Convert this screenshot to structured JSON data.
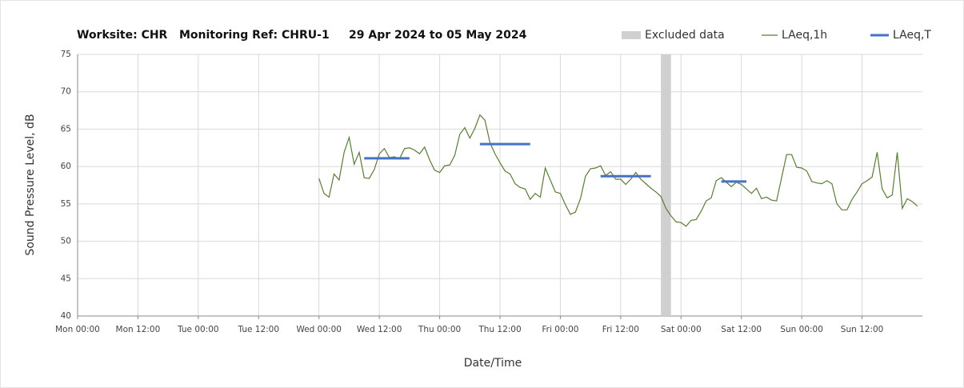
{
  "chart_data": {
    "type": "line",
    "title": "Worksite: CHR   Monitoring Ref: CHRU-1     29 Apr 2024 to 05 May 2024",
    "x_label": "Date/Time",
    "y_label": "Sound Pressure Level, dB",
    "xlim": [
      0,
      168
    ],
    "xticks": [
      {
        "value": 0,
        "label": "Mon 00:00"
      },
      {
        "value": 12,
        "label": "Mon 12:00"
      },
      {
        "value": 24,
        "label": "Tue 00:00"
      },
      {
        "value": 36,
        "label": "Tue 12:00"
      },
      {
        "value": 48,
        "label": "Wed 00:00"
      },
      {
        "value": 60,
        "label": "Wed 12:00"
      },
      {
        "value": 72,
        "label": "Thu 00:00"
      },
      {
        "value": 84,
        "label": "Thu 12:00"
      },
      {
        "value": 96,
        "label": "Fri 00:00"
      },
      {
        "value": 108,
        "label": "Fri 12:00"
      },
      {
        "value": 120,
        "label": "Sat 00:00"
      },
      {
        "value": 132,
        "label": "Sat 12:00"
      },
      {
        "value": 144,
        "label": "Sun 00:00"
      },
      {
        "value": 156,
        "label": "Sun 12:00"
      }
    ],
    "ylim": [
      40,
      75
    ],
    "yticks": [
      40,
      45,
      50,
      55,
      60,
      65,
      70,
      75
    ],
    "grid": true,
    "excluded": {
      "name": "Excluded data",
      "color": "#d0d0d0",
      "x": [
        116,
        118
      ]
    },
    "series": [
      {
        "name": "LAeq,1h",
        "color": "#5b7b3a",
        "x": [
          48,
          49,
          50,
          51,
          52,
          53,
          54,
          55,
          56,
          57,
          58,
          59,
          60,
          61,
          62,
          63,
          64,
          65,
          66,
          67,
          68,
          69,
          70,
          71,
          72,
          73,
          74,
          75,
          76,
          77,
          78,
          79,
          80,
          81,
          82,
          83,
          84,
          85,
          86,
          87,
          88,
          89,
          90,
          91,
          92,
          93,
          94,
          95,
          96,
          97,
          98,
          99,
          100,
          101,
          102,
          103,
          104,
          105,
          106,
          107,
          108,
          109,
          110,
          111,
          112,
          113,
          114,
          115,
          116,
          117,
          118,
          119,
          120,
          121,
          122,
          123,
          124,
          125,
          126,
          127,
          128,
          129,
          130,
          131,
          132,
          133,
          134,
          135,
          136,
          137,
          138,
          139,
          140,
          141,
          142,
          143,
          144,
          145,
          146,
          147,
          148,
          149,
          150,
          151,
          152,
          153,
          154,
          155,
          156,
          157,
          158,
          159,
          160,
          161,
          162,
          163,
          164,
          165,
          166,
          167
        ],
        "values": [
          58.4,
          56.4,
          55.9,
          59.0,
          58.2,
          61.9,
          63.9,
          60.3,
          61.9,
          58.5,
          58.4,
          59.6,
          61.7,
          62.4,
          61.2,
          61.3,
          61.0,
          62.4,
          62.5,
          62.2,
          61.7,
          62.6,
          60.9,
          59.5,
          59.2,
          60.1,
          60.2,
          61.5,
          64.3,
          65.2,
          63.8,
          65.1,
          66.9,
          66.2,
          63.2,
          61.7,
          60.5,
          59.4,
          59.0,
          57.7,
          57.2,
          57.0,
          55.6,
          56.4,
          55.9,
          59.8,
          58.2,
          56.6,
          56.4,
          54.9,
          53.6,
          53.9,
          55.7,
          58.7,
          59.7,
          59.8,
          60.1,
          58.8,
          59.3,
          58.3,
          58.3,
          57.6,
          58.3,
          59.2,
          58.3,
          57.7,
          57.1,
          56.6,
          56.0,
          54.4,
          53.4,
          52.6,
          52.5,
          52.0,
          52.8,
          52.9,
          54.0,
          55.4,
          55.8,
          58.1,
          58.5,
          57.9,
          57.3,
          57.9,
          57.6,
          57.0,
          56.4,
          57.1,
          55.7,
          55.9,
          55.5,
          55.4,
          58.5,
          61.6,
          61.6,
          59.9,
          59.8,
          59.4,
          58.0,
          57.8,
          57.7,
          58.1,
          57.7,
          55.0,
          54.2,
          54.2,
          55.6,
          56.6,
          57.7,
          58.1,
          58.6,
          61.9,
          57.0,
          55.8,
          56.2,
          61.9,
          54.4,
          55.7,
          55.3,
          54.7
        ]
      },
      {
        "name": "LAeq,T",
        "color": "#4472c4",
        "segments": [
          {
            "x": [
              57,
              66
            ],
            "value": 61.1
          },
          {
            "x": [
              80,
              90
            ],
            "value": 63.0
          },
          {
            "x": [
              104,
              114
            ],
            "value": 58.7
          },
          {
            "x": [
              128,
              133
            ],
            "value": 58.0
          }
        ]
      }
    ]
  }
}
